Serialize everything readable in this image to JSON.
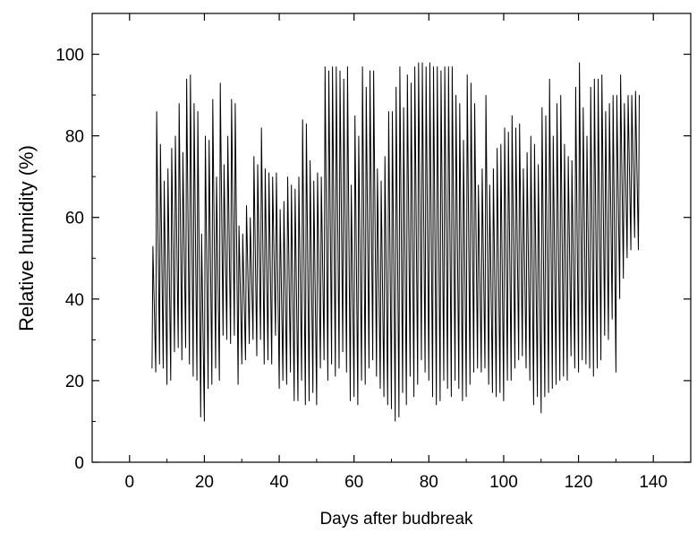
{
  "chart_data": {
    "type": "line",
    "title": "",
    "xlabel": "Days after budbreak",
    "ylabel": "Relative humidity (%)",
    "xlim": [
      -10,
      150
    ],
    "ylim": [
      0,
      110
    ],
    "xticks": [
      0,
      20,
      40,
      60,
      80,
      100,
      120,
      140
    ],
    "yticks": [
      0,
      20,
      40,
      60,
      80,
      100
    ],
    "x_tick_labels": [
      "0",
      "20",
      "40",
      "60",
      "80",
      "100",
      "120",
      "140"
    ],
    "y_tick_labels": [
      "0",
      "20",
      "40",
      "60",
      "80",
      "100"
    ],
    "grid": false,
    "legend": "none",
    "line_color": "#000000",
    "series": [
      {
        "x_start": 6,
        "x_end": 136,
        "daily_max": [
          53,
          86,
          78,
          69,
          72,
          77,
          80,
          88,
          76,
          94,
          95,
          88,
          86,
          56,
          80,
          79,
          89,
          70,
          93,
          73,
          80,
          89,
          88,
          58,
          56,
          63,
          60,
          75,
          73,
          82,
          72,
          71,
          70,
          71,
          62,
          64,
          70,
          68,
          67,
          70,
          84,
          83,
          74,
          69,
          71,
          70,
          97,
          96,
          97,
          97,
          96,
          94,
          97,
          68,
          85,
          80,
          97,
          92,
          96,
          96,
          72,
          69,
          75,
          86,
          86,
          92,
          97,
          87,
          95,
          93,
          97,
          98,
          98,
          97,
          98,
          97,
          97,
          96,
          97,
          97,
          97,
          90,
          88,
          79,
          95,
          93,
          88,
          68,
          72,
          90,
          68,
          72,
          77,
          78,
          82,
          81,
          85,
          82,
          83,
          72,
          76,
          80,
          78,
          73,
          87,
          85,
          94,
          80,
          88,
          90,
          78,
          75,
          74,
          92,
          98,
          87,
          80,
          92,
          94,
          94,
          95,
          86,
          88,
          90,
          90,
          95,
          88,
          90,
          90,
          91,
          90
        ],
        "daily_min": [
          23,
          22,
          24,
          23,
          19,
          20,
          27,
          28,
          25,
          28,
          24,
          21,
          20,
          11,
          10,
          18,
          19,
          23,
          20,
          31,
          30,
          29,
          31,
          19,
          24,
          25,
          29,
          30,
          26,
          30,
          24,
          25,
          24,
          31,
          18,
          20,
          19,
          22,
          15,
          15,
          20,
          14,
          15,
          17,
          14,
          23,
          25,
          20,
          24,
          21,
          23,
          27,
          22,
          15,
          16,
          14,
          20,
          19,
          23,
          25,
          21,
          18,
          16,
          14,
          13,
          10,
          11,
          17,
          14,
          21,
          16,
          19,
          25,
          22,
          20,
          16,
          14,
          15,
          20,
          18,
          16,
          20,
          18,
          15,
          16,
          19,
          22,
          23,
          22,
          23,
          19,
          17,
          16,
          17,
          15,
          20,
          20,
          23,
          25,
          26,
          23,
          20,
          14,
          16,
          12,
          16,
          17,
          18,
          19,
          20,
          21,
          20,
          26,
          23,
          22,
          25,
          24,
          23,
          21,
          23,
          25,
          31,
          30,
          35,
          22,
          40,
          45,
          50,
          52,
          55,
          52
        ]
      }
    ]
  }
}
